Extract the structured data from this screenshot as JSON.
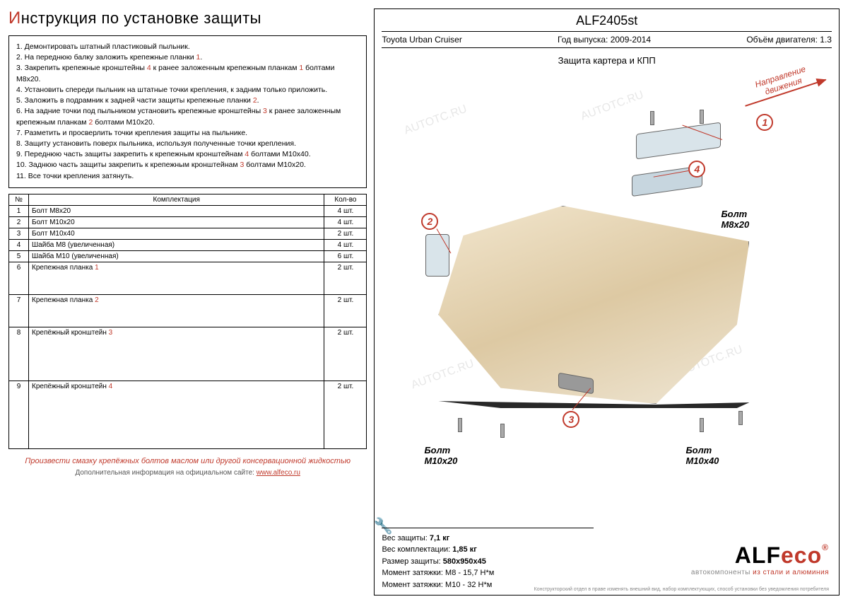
{
  "title_first": "И",
  "title_rest": "нструкция по установке защиты",
  "instructions": [
    "1. Демонтировать штатный пластиковый пыльник.",
    "2. На переднюю балку заложить крепежные планки <span class='red-num'>1</span>.",
    "3. Закрепить крепежные кронштейны <span class='red-num'>4</span> к ранее заложенным крепежным планкам <span class='red-num'>1</span> болтами М8х20.",
    "4. Установить спереди пыльник на штатные точки крепления, к задним только приложить.",
    "5. Заложить в подрамник к задней части защиты крепежные планки <span class='red-num'>2</span>.",
    "6. На задние точки под пыльником установить крепежные кронштейны <span class='red-num'>3</span> к ранее заложенным крепежным планкам <span class='red-num'>2</span> болтами М10х20.",
    "7. Разметить и просверлить точки крепления защиты на пыльнике.",
    "8. Защиту установить поверх пыльника, используя полученные точки крепления.",
    "9. Переднюю часть защиты закрепить к крепежным кронштейнам <span class='red-num'>4</span> болтами М10х40.",
    "10. Заднюю часть защиты закрепить к крепежным кронштейнам <span class='red-num'>3</span> болтами М10х20.",
    "11. Все точки крепления затянуть."
  ],
  "table": {
    "headers": [
      "№",
      "Комплектация",
      "Кол-во"
    ],
    "rows": [
      {
        "n": "1",
        "name": "Болт М8х20",
        "qty": "4 шт.",
        "h": ""
      },
      {
        "n": "2",
        "name": "Болт М10х20",
        "qty": "4 шт.",
        "h": ""
      },
      {
        "n": "3",
        "name": "Болт М10х40",
        "qty": "2 шт.",
        "h": ""
      },
      {
        "n": "4",
        "name": "Шайба М8 (увеличенная)",
        "qty": "4 шт.",
        "h": ""
      },
      {
        "n": "5",
        "name": "Шайба М10 (увеличенная)",
        "qty": "6 шт.",
        "h": ""
      },
      {
        "n": "6",
        "name": "Крепежная планка <span class='red-num'>1</span>",
        "qty": "2 шт.",
        "h": "tall-row"
      },
      {
        "n": "7",
        "name": "Крепежная планка <span class='red-num'>2</span>",
        "qty": "2 шт.",
        "h": "tall-row"
      },
      {
        "n": "8",
        "name": "Крепёжный кронштейн <span class='red-num'>3</span>",
        "qty": "2 шт.",
        "h": "taller-row"
      },
      {
        "n": "9",
        "name": "Крепёжный кронштейн <span class='red-num'>4</span>",
        "qty": "2 шт.",
        "h": "tallest-row"
      }
    ]
  },
  "warning": "Произвести смазку крепёжных болтов маслом или другой консервационной жидкостью",
  "site_prefix": "Дополнительная информация на официальном сайте: ",
  "site_link": "www.alfeco.ru",
  "product_code": "ALF2405st",
  "vehicle": "Toyota Urban Cruiser",
  "year_label": "Год выпуска: 2009-2014",
  "engine_label": "Объём двигателя: 1.3",
  "subtitle": "Защита картера и КПП",
  "direction": "Направление<br>движения",
  "callouts": {
    "c1": "1",
    "c2": "2",
    "c3": "3",
    "c4": "4"
  },
  "bolt_labels": {
    "bl1": "Болт<br>М8х20",
    "bl2": "Болт<br>М10х20",
    "bl3": "Болт<br>М10х40"
  },
  "stats": [
    "Вес защиты: <b>7,1 кг</b>",
    "Вес комплектации: <b>1,85 кг</b>",
    "Размер защиты: <b>580х950х45</b>",
    "Момент затяжки:  М8 - 15,7 Н*м",
    "Момент затяжки:  М10 - 32 Н*м"
  ],
  "logo": {
    "alf": "ALF",
    "eco": "eco",
    "reg": "®",
    "sub_pre": "автокомпоненты ",
    "sub_hl": "из стали и алюминия"
  },
  "fine": "Конструкторский отдел в праве изменять внешний вид, набор комплектующих, способ установки без уведомления потребителя",
  "watermark": "AUTOTC.RU"
}
